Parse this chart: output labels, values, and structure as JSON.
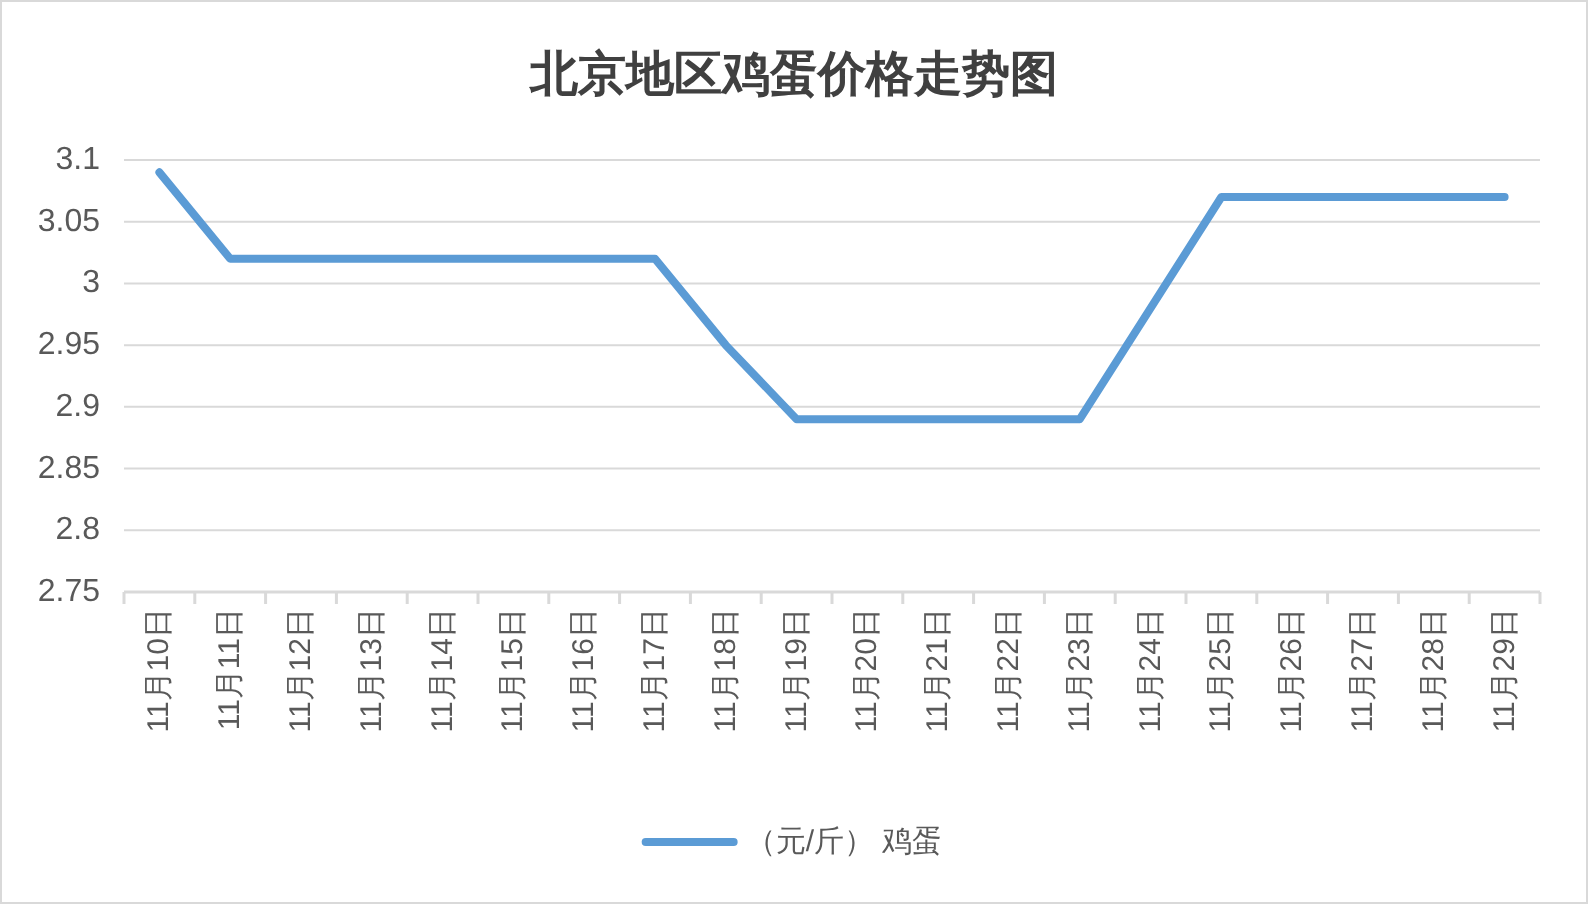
{
  "chart_data": {
    "type": "line",
    "title": "北京地区鸡蛋价格走势图",
    "categories": [
      "11月10日",
      "11月11日",
      "11月12日",
      "11月13日",
      "11月14日",
      "11月15日",
      "11月16日",
      "11月17日",
      "11月18日",
      "11月19日",
      "11月20日",
      "11月21日",
      "11月22日",
      "11月23日",
      "11月24日",
      "11月25日",
      "11月26日",
      "11月27日",
      "11月28日",
      "11月29日"
    ],
    "series": [
      {
        "name": "（元/斤） 鸡蛋",
        "color": "#5b9bd5",
        "values": [
          3.09,
          3.02,
          3.02,
          3.02,
          3.02,
          3.02,
          3.02,
          3.02,
          2.95,
          2.89,
          2.89,
          2.89,
          2.89,
          2.89,
          2.98,
          3.07,
          3.07,
          3.07,
          3.07,
          3.07
        ]
      }
    ],
    "ylim": [
      2.75,
      3.1
    ],
    "yticks": [
      2.75,
      2.8,
      2.85,
      2.9,
      2.95,
      3,
      3.05,
      3.1
    ],
    "grid": "y",
    "legend": "bottom"
  }
}
